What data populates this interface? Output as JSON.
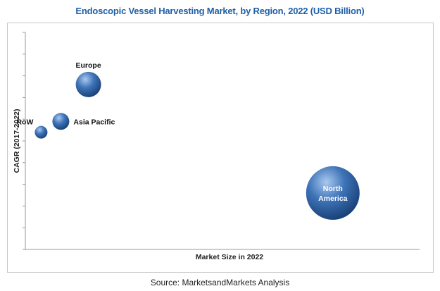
{
  "title": "Endoscopic Vessel Harvesting Market, by Region, 2022 (USD Billion)",
  "source": "Source: MarketsandMarkets Analysis",
  "colors": {
    "title": "#1f5fa8",
    "bubble_light": "#a9c9ef",
    "bubble_mid": "#3f74b8",
    "bubble_dark": "#163c72"
  },
  "chart_data": {
    "type": "scatter",
    "title": "Endoscopic Vessel Harvesting Market, by Region, 2022 (USD Billion)",
    "xlabel": "Market Size in 2022",
    "ylabel": "CAGR (2017-2022)",
    "xlim": [
      0,
      10
    ],
    "ylim": [
      0,
      10
    ],
    "x_ticks": 0,
    "y_ticks": 10,
    "grid": false,
    "legend": "none",
    "points": [
      {
        "label": "Europe",
        "x": 1.6,
        "y": 7.6,
        "size": 1.8
      },
      {
        "label": "Asia Pacific",
        "x": 0.9,
        "y": 5.9,
        "size": 1.2
      },
      {
        "label": "RoW",
        "x": 0.4,
        "y": 5.4,
        "size": 0.9
      },
      {
        "label": "North America",
        "x": 7.8,
        "y": 2.6,
        "size": 3.8
      }
    ]
  }
}
